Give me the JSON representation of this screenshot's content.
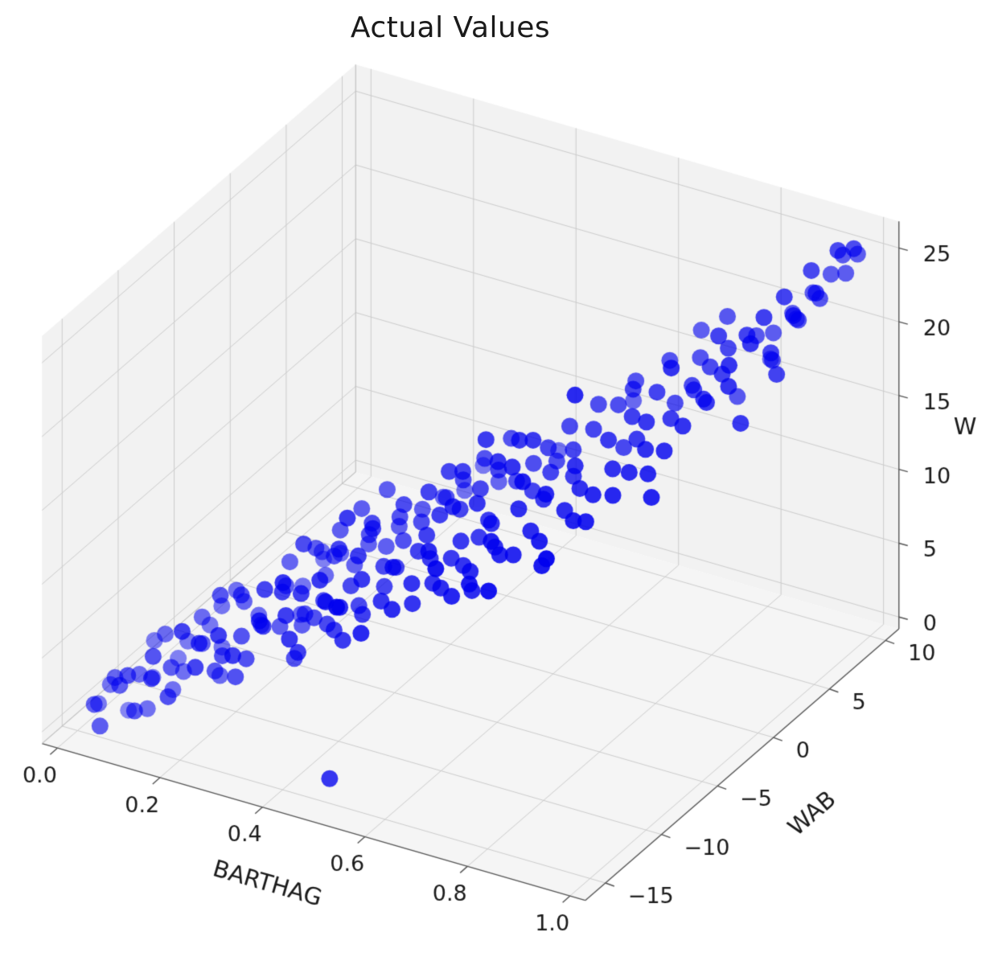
{
  "chart_data": {
    "type": "scatter",
    "projection": "3d",
    "title": "Actual Values",
    "xlabel": "BARTHAG",
    "ylabel": "WAB",
    "zlabel": "W",
    "xlim": [
      -0.03,
      1.03
    ],
    "ylim": [
      -16.8,
      11.2
    ],
    "zlim": [
      -0.8,
      26.8
    ],
    "xtick_values": [
      0.0,
      0.2,
      0.4,
      0.6,
      0.8,
      1.0
    ],
    "xtick_labels": [
      "0.0",
      "0.2",
      "0.4",
      "0.6",
      "0.8",
      "1.0"
    ],
    "ytick_values": [
      -15,
      -10,
      -5,
      0,
      5,
      10
    ],
    "ytick_labels": [
      "−15",
      "−10",
      "−5",
      "0",
      "5",
      "10"
    ],
    "ztick_values": [
      0,
      5,
      10,
      15,
      20,
      25
    ],
    "ztick_labels": [
      "0",
      "5",
      "10",
      "15",
      "20",
      "25"
    ],
    "legend": false,
    "grid": true,
    "view": {
      "azim": -60,
      "elev": 30,
      "z_aspect": 0.75
    },
    "style": {
      "point_color": "#0000ee",
      "point_radius": 10.5,
      "pane_color": "#f2f2f2",
      "grid_color": "#cccccc",
      "axis_line_color": "#555555",
      "text_color": "#1a1a1a",
      "background": "#ffffff"
    },
    "points": [
      [
        0.03,
        -14.5,
        1
      ],
      [
        0.05,
        -15.8,
        2
      ],
      [
        0.06,
        -13.2,
        0
      ],
      [
        0.08,
        -14.9,
        3
      ],
      [
        0.09,
        -12.4,
        2
      ],
      [
        0.1,
        -15.1,
        4
      ],
      [
        0.11,
        -13.8,
        1
      ],
      [
        0.12,
        -11.5,
        3
      ],
      [
        0.13,
        -14.2,
        5
      ],
      [
        0.14,
        -12.9,
        2
      ],
      [
        0.15,
        -13.5,
        4
      ],
      [
        0.16,
        -11.2,
        6
      ],
      [
        0.17,
        -14.7,
        3
      ],
      [
        0.18,
        -12.1,
        5
      ],
      [
        0.19,
        -10.8,
        4
      ],
      [
        0.2,
        -13.3,
        6
      ],
      [
        0.21,
        -11.9,
        3
      ],
      [
        0.22,
        -10.2,
        7
      ],
      [
        0.23,
        -12.6,
        5
      ],
      [
        0.24,
        -9.8,
        6
      ],
      [
        0.07,
        -16.2,
        1
      ],
      [
        0.12,
        -15.4,
        2
      ],
      [
        0.18,
        -13.9,
        7
      ],
      [
        0.22,
        -12.8,
        4
      ],
      [
        0.16,
        -10.5,
        5
      ],
      [
        0.09,
        -13.6,
        3
      ],
      [
        0.2,
        -11.4,
        8
      ],
      [
        0.14,
        -14.8,
        4
      ],
      [
        0.25,
        -11.8,
        6
      ],
      [
        0.11,
        -12.2,
        5
      ],
      [
        0.04,
        -13.9,
        2
      ],
      [
        0.19,
        -9.5,
        7
      ],
      [
        0.23,
        -10.9,
        8
      ],
      [
        0.15,
        -12.4,
        3
      ],
      [
        0.21,
        -14.1,
        5
      ],
      [
        0.08,
        -11.8,
        4
      ],
      [
        0.24,
        -13.4,
        7
      ],
      [
        0.17,
        -9.9,
        6
      ],
      [
        0.13,
        -11.1,
        4
      ],
      [
        0.06,
        -14.4,
        3
      ],
      [
        0.26,
        -10.5,
        6
      ],
      [
        0.27,
        -12.3,
        5
      ],
      [
        0.28,
        -9.2,
        8
      ],
      [
        0.29,
        -11.7,
        7
      ],
      [
        0.3,
        -8.8,
        6
      ],
      [
        0.31,
        -10.9,
        9
      ],
      [
        0.32,
        -7.5,
        8
      ],
      [
        0.33,
        -9.8,
        7
      ],
      [
        0.34,
        -11.2,
        5
      ],
      [
        0.35,
        -8.1,
        10
      ],
      [
        0.36,
        -9.5,
        8
      ],
      [
        0.37,
        -7.2,
        9
      ],
      [
        0.38,
        -10.1,
        7
      ],
      [
        0.39,
        -6.8,
        11
      ],
      [
        0.4,
        -8.9,
        9
      ],
      [
        0.41,
        -6.2,
        10
      ],
      [
        0.42,
        -9.1,
        8
      ],
      [
        0.43,
        -5.9,
        12
      ],
      [
        0.44,
        -7.8,
        10
      ],
      [
        0.45,
        -6.5,
        11
      ],
      [
        0.27,
        -8.4,
        9
      ],
      [
        0.29,
        -10.2,
        6
      ],
      [
        0.31,
        -7.9,
        10
      ],
      [
        0.33,
        -11.5,
        8
      ],
      [
        0.35,
        -9.9,
        7
      ],
      [
        0.37,
        -8.6,
        11
      ],
      [
        0.39,
        -10.7,
        9
      ],
      [
        0.41,
        -7.4,
        12
      ],
      [
        0.43,
        -9.3,
        10
      ],
      [
        0.45,
        -8.2,
        9
      ],
      [
        0.26,
        -12.8,
        4
      ],
      [
        0.28,
        -11.1,
        9
      ],
      [
        0.3,
        -12.5,
        8
      ],
      [
        0.32,
        -9.6,
        6
      ],
      [
        0.34,
        -7.1,
        11
      ],
      [
        0.36,
        -11.8,
        6
      ],
      [
        0.38,
        -6.4,
        10
      ],
      [
        0.4,
        -10.4,
        7
      ],
      [
        0.42,
        -5.5,
        11
      ],
      [
        0.44,
        -9.7,
        8
      ],
      [
        0.28,
        -7.7,
        7
      ],
      [
        0.3,
        -6.9,
        9
      ],
      [
        0.32,
        -11.3,
        10
      ],
      [
        0.34,
        -10.6,
        9
      ],
      [
        0.36,
        -6.1,
        12
      ],
      [
        0.38,
        -8.3,
        13
      ],
      [
        0.4,
        -7.0,
        12
      ],
      [
        0.42,
        -10.8,
        9
      ],
      [
        0.44,
        -6.0,
        13
      ],
      [
        0.31,
        -9.0,
        11
      ],
      [
        0.33,
        -6.6,
        9
      ],
      [
        0.35,
        -12.1,
        7
      ],
      [
        0.37,
        -10.3,
        10
      ],
      [
        0.39,
        -5.2,
        13
      ],
      [
        0.41,
        -8.7,
        11
      ],
      [
        0.43,
        -11.0,
        7
      ],
      [
        0.45,
        -4.8,
        12
      ],
      [
        0.29,
        -6.3,
        8
      ],
      [
        0.27,
        -13.5,
        6
      ],
      [
        0.44,
        -12.0,
        10
      ],
      [
        0.46,
        -7.6,
        10
      ],
      [
        0.47,
        -5.8,
        12
      ],
      [
        0.48,
        -8.8,
        11
      ],
      [
        0.49,
        -4.5,
        13
      ],
      [
        0.5,
        -6.7,
        12
      ],
      [
        0.51,
        -3.9,
        14
      ],
      [
        0.52,
        -7.3,
        11
      ],
      [
        0.53,
        -5.1,
        13
      ],
      [
        0.54,
        -8.0,
        10
      ],
      [
        0.55,
        -4.2,
        14
      ],
      [
        0.56,
        -6.4,
        12
      ],
      [
        0.57,
        -3.5,
        15
      ],
      [
        0.58,
        -7.1,
        11
      ],
      [
        0.59,
        -2.8,
        14
      ],
      [
        0.6,
        -5.5,
        13
      ],
      [
        0.61,
        -2.2,
        15
      ],
      [
        0.62,
        -6.1,
        12
      ],
      [
        0.63,
        -1.8,
        16
      ],
      [
        0.64,
        -4.9,
        14
      ],
      [
        0.65,
        -2.5,
        15
      ],
      [
        0.47,
        -9.4,
        9
      ],
      [
        0.49,
        -7.0,
        11
      ],
      [
        0.51,
        -8.5,
        10
      ],
      [
        0.53,
        -2.9,
        15
      ],
      [
        0.55,
        -6.8,
        11
      ],
      [
        0.57,
        -9.1,
        12
      ],
      [
        0.59,
        -5.3,
        13
      ],
      [
        0.61,
        -7.7,
        10
      ],
      [
        0.63,
        -3.2,
        14
      ],
      [
        0.65,
        -5.0,
        16
      ],
      [
        0.46,
        -3.4,
        12
      ],
      [
        0.48,
        -5.6,
        14
      ],
      [
        0.5,
        -9.8,
        9
      ],
      [
        0.52,
        -4.4,
        15
      ],
      [
        0.54,
        -2.1,
        13
      ],
      [
        0.56,
        -8.2,
        10
      ],
      [
        0.58,
        -4.0,
        16
      ],
      [
        0.6,
        -7.4,
        11
      ],
      [
        0.62,
        -2.7,
        17
      ],
      [
        0.64,
        -6.6,
        12
      ],
      [
        0.48,
        -2.4,
        12
      ],
      [
        0.5,
        -4.7,
        15
      ],
      [
        0.52,
        -8.9,
        9
      ],
      [
        0.54,
        -6.2,
        14
      ],
      [
        0.56,
        -1.9,
        16
      ],
      [
        0.58,
        -5.7,
        12
      ],
      [
        0.6,
        -3.0,
        17
      ],
      [
        0.62,
        -8.4,
        11
      ],
      [
        0.64,
        -1.5,
        15
      ],
      [
        0.51,
        -6.0,
        13
      ],
      [
        0.53,
        -7.9,
        12
      ],
      [
        0.55,
        -3.7,
        17
      ],
      [
        0.57,
        -5.4,
        14
      ],
      [
        0.59,
        -8.6,
        10
      ],
      [
        0.61,
        -4.1,
        16
      ],
      [
        0.63,
        -6.9,
        13
      ],
      [
        0.65,
        -0.8,
        17
      ],
      [
        0.49,
        -1.2,
        13
      ],
      [
        0.47,
        -11.2,
        8
      ],
      [
        0.6,
        0.5,
        14
      ],
      [
        0.47,
        -14.0,
        0
      ],
      [
        0.66,
        -3.6,
        14
      ],
      [
        0.67,
        -1.4,
        16
      ],
      [
        0.68,
        -4.3,
        15
      ],
      [
        0.69,
        -0.5,
        17
      ],
      [
        0.7,
        -2.6,
        16
      ],
      [
        0.71,
        0.8,
        18
      ],
      [
        0.72,
        -3.1,
        15
      ],
      [
        0.73,
        -1.0,
        17
      ],
      [
        0.74,
        -4.6,
        14
      ],
      [
        0.75,
        0.2,
        18
      ],
      [
        0.76,
        -2.0,
        16
      ],
      [
        0.77,
        1.5,
        19
      ],
      [
        0.78,
        -2.9,
        15
      ],
      [
        0.79,
        2.2,
        18
      ],
      [
        0.8,
        -0.9,
        17
      ],
      [
        0.81,
        2.8,
        19
      ],
      [
        0.82,
        -1.6,
        16
      ],
      [
        0.83,
        3.5,
        20
      ],
      [
        0.84,
        0.6,
        18
      ],
      [
        0.85,
        2.0,
        19
      ],
      [
        0.67,
        -5.2,
        13
      ],
      [
        0.69,
        -2.3,
        15
      ],
      [
        0.71,
        -4.0,
        14
      ],
      [
        0.73,
        1.2,
        19
      ],
      [
        0.75,
        -3.3,
        15
      ],
      [
        0.77,
        -0.3,
        17
      ],
      [
        0.79,
        -1.9,
        16
      ],
      [
        0.81,
        0.9,
        18
      ],
      [
        0.83,
        -0.6,
        17
      ],
      [
        0.85,
        4.2,
        21
      ],
      [
        0.66,
        -6.3,
        12
      ],
      [
        0.68,
        0.4,
        18
      ],
      [
        0.7,
        -5.8,
        13
      ],
      [
        0.72,
        1.9,
        19
      ],
      [
        0.74,
        -0.1,
        16
      ],
      [
        0.76,
        3.1,
        20
      ],
      [
        0.78,
        0.1,
        18
      ],
      [
        0.8,
        4.0,
        20
      ],
      [
        0.82,
        2.5,
        19
      ],
      [
        0.84,
        -2.2,
        15
      ],
      [
        0.68,
        -1.7,
        20
      ],
      [
        0.72,
        -6.5,
        12
      ],
      [
        0.76,
        -4.4,
        14
      ],
      [
        0.8,
        1.4,
        21
      ],
      [
        0.84,
        3.8,
        22
      ],
      [
        0.7,
        2.6,
        17
      ],
      [
        0.74,
        -7.0,
        13
      ],
      [
        0.78,
        5.0,
        21
      ],
      [
        0.82,
        5.5,
        22
      ],
      [
        0.66,
        -8.5,
        11
      ],
      [
        0.86,
        3.2,
        20
      ],
      [
        0.87,
        5.8,
        21
      ],
      [
        0.88,
        4.5,
        22
      ],
      [
        0.89,
        6.4,
        21
      ],
      [
        0.9,
        5.1,
        23
      ],
      [
        0.91,
        7.2,
        22
      ],
      [
        0.92,
        6.0,
        24
      ],
      [
        0.93,
        8.1,
        23
      ],
      [
        0.94,
        7.5,
        25
      ],
      [
        0.95,
        8.8,
        24
      ],
      [
        0.96,
        9.4,
        25
      ],
      [
        0.97,
        8.5,
        26
      ],
      [
        0.98,
        9.8,
        25
      ],
      [
        0.99,
        9.0,
        26
      ],
      [
        0.86,
        1.8,
        19
      ],
      [
        0.88,
        2.9,
        21
      ],
      [
        0.9,
        3.9,
        22
      ],
      [
        0.92,
        4.8,
        21
      ],
      [
        0.94,
        5.9,
        23
      ],
      [
        0.96,
        7.0,
        24
      ],
      [
        0.87,
        4.1,
        18
      ],
      [
        0.89,
        2.4,
        20
      ],
      [
        0.91,
        5.4,
        20
      ],
      [
        0.93,
        6.8,
        22
      ],
      [
        0.95,
        7.8,
        23
      ],
      [
        0.97,
        9.2,
        24
      ],
      [
        0.88,
        6.6,
        19
      ],
      [
        0.9,
        8.0,
        21
      ],
      [
        0.92,
        2.1,
        18
      ],
      [
        0.94,
        4.4,
        20
      ]
    ]
  }
}
